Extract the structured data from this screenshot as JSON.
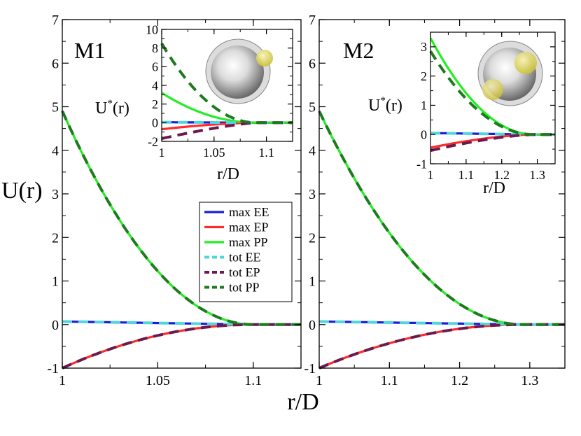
{
  "figure": {
    "ylabel": "U(r)",
    "xlabel": "r/D"
  },
  "legend": {
    "entries": [
      {
        "label": "max EE",
        "color": "#1c1cd6",
        "dashed": false
      },
      {
        "label": "max EP",
        "color": "#ff2a2a",
        "dashed": false
      },
      {
        "label": "max PP",
        "color": "#22ee22",
        "dashed": false
      },
      {
        "label": "tot  EE",
        "color": "#52d4dc",
        "dashed": true
      },
      {
        "label": "tot  EP",
        "color": "#6b1a4e",
        "dashed": true
      },
      {
        "label": "tot  PP",
        "color": "#1e7a1e",
        "dashed": true
      }
    ]
  },
  "chart_data": [
    {
      "type": "line",
      "id": "M1",
      "panel_label": "M1",
      "xlim": [
        1.0,
        1.125
      ],
      "ylim": [
        -1,
        7
      ],
      "xticks": [
        "1",
        "1.05",
        "1.1"
      ],
      "xtick_values": [
        1.0,
        1.05,
        1.1
      ],
      "yticks": [
        "-1",
        "0",
        "1",
        "2",
        "3",
        "4",
        "5",
        "6",
        "7"
      ],
      "cutoff": 1.1,
      "series": [
        {
          "name": "max EE",
          "model": "flat",
          "start": 0.07,
          "end": 0
        },
        {
          "name": "max EP",
          "model": "power",
          "start": -1.0,
          "end": 0,
          "exponent": 2
        },
        {
          "name": "max PP",
          "model": "power",
          "start": 4.9,
          "end": 0,
          "exponent": 2
        },
        {
          "name": "tot  EE",
          "model": "flat",
          "start": 0.07,
          "end": 0
        },
        {
          "name": "tot  EP",
          "model": "power",
          "start": -1.0,
          "end": 0,
          "exponent": 2
        },
        {
          "name": "tot  PP",
          "model": "power",
          "start": 4.9,
          "end": 0,
          "exponent": 2
        }
      ],
      "inset": {
        "xlabel": "r/D",
        "ylabel": "U*(r)",
        "xlim": [
          1.0,
          1.125
        ],
        "ylim": [
          -2,
          10
        ],
        "xticks": [
          "1",
          "1.05",
          "1.1"
        ],
        "xtick_values": [
          1.0,
          1.05,
          1.1
        ],
        "yticks": [
          "-2",
          "0",
          "2",
          "4",
          "6",
          "8",
          "10"
        ],
        "cutoff": 1.09,
        "series": [
          {
            "name": "max EE",
            "model": "flat",
            "start": 0.05,
            "end": 0
          },
          {
            "name": "max EP",
            "model": "power",
            "start": -0.7,
            "end": 0,
            "exponent": 1.6
          },
          {
            "name": "max PP",
            "model": "power",
            "start": 3.2,
            "end": 0,
            "exponent": 2
          },
          {
            "name": "tot  EE",
            "model": "flat",
            "start": 0.05,
            "end": 0
          },
          {
            "name": "tot  EP",
            "model": "power",
            "start": -1.7,
            "end": 0,
            "exponent": 1.3
          },
          {
            "name": "tot  PP",
            "model": "power",
            "start": 8.5,
            "end": 0,
            "exponent": 2
          }
        ]
      }
    },
    {
      "type": "line",
      "id": "M2",
      "panel_label": "M2",
      "xlim": [
        1.0,
        1.35
      ],
      "ylim": [
        -1,
        7
      ],
      "xticks": [
        "1",
        "1.1",
        "1.2",
        "1.3"
      ],
      "xtick_values": [
        1.0,
        1.1,
        1.2,
        1.3
      ],
      "yticks": [
        "-1",
        "0",
        "1",
        "2",
        "3",
        "4",
        "5",
        "6",
        "7"
      ],
      "cutoff": 1.29,
      "series": [
        {
          "name": "max EE",
          "model": "flat",
          "start": 0.07,
          "end": 0
        },
        {
          "name": "max EP",
          "model": "power",
          "start": -1.0,
          "end": 0,
          "exponent": 2
        },
        {
          "name": "max PP",
          "model": "power",
          "start": 4.9,
          "end": 0,
          "exponent": 2
        },
        {
          "name": "tot  EE",
          "model": "flat",
          "start": 0.07,
          "end": 0
        },
        {
          "name": "tot  EP",
          "model": "power",
          "start": -1.0,
          "end": 0,
          "exponent": 2
        },
        {
          "name": "tot  PP",
          "model": "power",
          "start": 4.9,
          "end": 0,
          "exponent": 2
        }
      ],
      "inset": {
        "xlabel": "r/D",
        "ylabel": "U*(r)",
        "xlim": [
          1.0,
          1.35
        ],
        "ylim": [
          -1,
          3.5
        ],
        "xticks": [
          "1",
          "1.1",
          "1.2",
          "1.3"
        ],
        "xtick_values": [
          1.0,
          1.1,
          1.2,
          1.3
        ],
        "yticks": [
          "-1",
          "0",
          "1",
          "2",
          "3"
        ],
        "cutoff": 1.29,
        "series": [
          {
            "name": "max EE",
            "model": "flat",
            "start": 0.05,
            "end": 0
          },
          {
            "name": "max EP",
            "model": "power",
            "start": -0.45,
            "end": 0,
            "exponent": 1.6
          },
          {
            "name": "max PP",
            "model": "power",
            "start": 3.3,
            "end": 0,
            "exponent": 2
          },
          {
            "name": "tot  EE",
            "model": "flat",
            "start": 0.05,
            "end": 0
          },
          {
            "name": "tot  EP",
            "model": "power",
            "start": -0.55,
            "end": 0,
            "exponent": 1.5
          },
          {
            "name": "tot  PP",
            "model": "power",
            "start": 2.85,
            "end": 0,
            "exponent": 2
          }
        ]
      }
    }
  ]
}
